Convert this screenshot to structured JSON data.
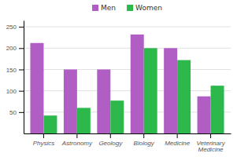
{
  "chart_data": {
    "type": "bar",
    "categories": [
      "Physics",
      "Astronomy",
      "Geology",
      "Biology",
      "Medicine",
      "Veterinary\nMedicine"
    ],
    "series": [
      {
        "name": "Men",
        "color": "#b05dc4",
        "values": [
          212,
          150,
          150,
          232,
          200,
          87
        ]
      },
      {
        "name": "Women",
        "color": "#2db84b",
        "values": [
          42,
          60,
          77,
          200,
          172,
          112
        ]
      }
    ],
    "ylim": [
      0,
      265
    ],
    "yticks": [
      50,
      100,
      150,
      200,
      250
    ],
    "grid": true,
    "legend": "top"
  }
}
